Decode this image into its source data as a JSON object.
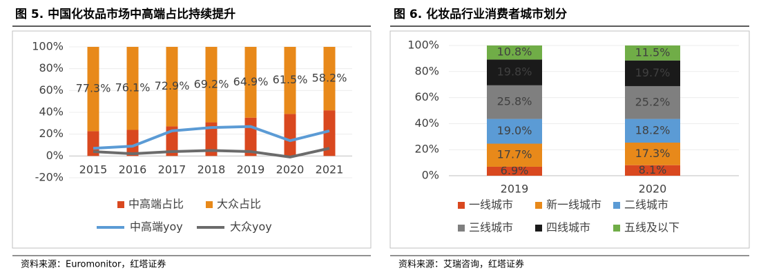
{
  "chart_data": [
    {
      "type": "bar",
      "stacked": true,
      "title": "图 5. 中国化妆品市场中高端占比持续提升",
      "source": "资料来源：Euromonitor，红塔证券",
      "categories": [
        "2015",
        "2016",
        "2017",
        "2018",
        "2019",
        "2020",
        "2021"
      ],
      "ylim": [
        -20,
        100
      ],
      "yticks": [
        {
          "value": -20,
          "label": "-20%"
        },
        {
          "value": 0,
          "label": "0%"
        },
        {
          "value": 20,
          "label": "20%"
        },
        {
          "value": 40,
          "label": "40%"
        },
        {
          "value": 60,
          "label": "60%"
        },
        {
          "value": 80,
          "label": "80%"
        },
        {
          "value": 100,
          "label": "100%"
        }
      ],
      "grid": true,
      "series": [
        {
          "name": "中高端占比",
          "type": "bar",
          "color": "#d9481f",
          "values": [
            22.7,
            23.9,
            27.1,
            30.8,
            35.1,
            38.5,
            41.8
          ]
        },
        {
          "name": "大众占比",
          "type": "bar",
          "color": "#e8891a",
          "values": [
            77.3,
            76.1,
            72.9,
            69.2,
            64.9,
            61.5,
            58.2
          ],
          "value_labels": [
            "77.3%",
            "76.1%",
            "72.9%",
            "69.2%",
            "64.9%",
            "61.5%",
            "58.2%"
          ]
        },
        {
          "name": "中高端yoy",
          "type": "line",
          "color": "#5b9bd5",
          "values": [
            7,
            9,
            23,
            26,
            27,
            14,
            23
          ]
        },
        {
          "name": "大众yoy",
          "type": "line",
          "color": "#6b6b6b",
          "values": [
            4,
            2,
            4,
            5,
            4,
            -1,
            7
          ]
        }
      ]
    },
    {
      "type": "bar",
      "stacked": true,
      "title": "图 6. 化妆品行业消费者城市划分",
      "source": "资料来源：艾瑞咨询，红塔证券",
      "categories": [
        "2019",
        "2020"
      ],
      "ylim": [
        0,
        100
      ],
      "yticks": [
        {
          "value": 0,
          "label": "0%"
        },
        {
          "value": 20,
          "label": "20%"
        },
        {
          "value": 40,
          "label": "40%"
        },
        {
          "value": 60,
          "label": "60%"
        },
        {
          "value": 80,
          "label": "80%"
        },
        {
          "value": 100,
          "label": "100%"
        }
      ],
      "grid": true,
      "series": [
        {
          "name": "一线城市",
          "color": "#d9481f",
          "values": [
            6.9,
            8.1
          ],
          "value_labels": [
            "6.9%",
            "8.1%"
          ]
        },
        {
          "name": "新一线城市",
          "color": "#e8891a",
          "values": [
            17.7,
            17.3
          ],
          "value_labels": [
            "17.7%",
            "17.3%"
          ]
        },
        {
          "name": "二线城市",
          "color": "#5b9bd5",
          "values": [
            19.0,
            18.2
          ],
          "value_labels": [
            "19.0%",
            "18.2%"
          ]
        },
        {
          "name": "三线城市",
          "color": "#7f7f7f",
          "values": [
            25.8,
            25.2
          ],
          "value_labels": [
            "25.8%",
            "25.2%"
          ]
        },
        {
          "name": "四线城市",
          "color": "#1a1a1a",
          "values": [
            19.8,
            19.7
          ],
          "value_labels": [
            "19.8%",
            "19.7%"
          ]
        },
        {
          "name": "五线及以下",
          "color": "#70ad47",
          "values": [
            10.8,
            11.5
          ],
          "value_labels": [
            "10.8%",
            "11.5%"
          ]
        }
      ]
    }
  ]
}
